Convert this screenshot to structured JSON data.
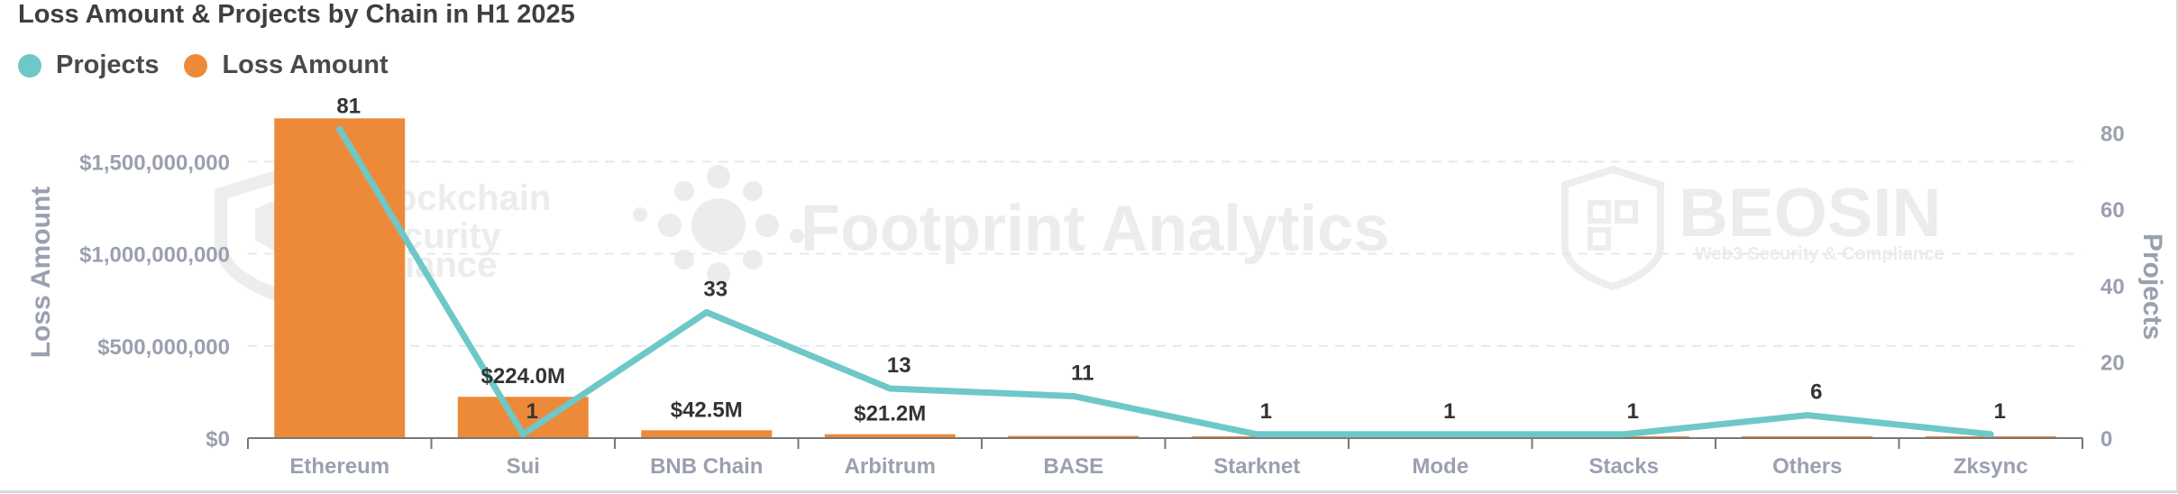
{
  "chart_data": {
    "type": "bar",
    "title": "Loss Amount & Projects by Chain in H1 2025",
    "categories": [
      "Ethereum",
      "Sui",
      "BNB Chain",
      "Arbitrum",
      "BASE",
      "Starknet",
      "Mode",
      "Stacks",
      "Others",
      "Zksync"
    ],
    "series": [
      {
        "name": "Loss Amount",
        "kind": "bar",
        "axis": "left",
        "values": [
          1735000000,
          224000000,
          42500000,
          21200000,
          12000000,
          300000,
          200000,
          150000,
          300000,
          100000
        ],
        "labels": [
          "",
          "$224.0M",
          "$42.5M",
          "$21.2M",
          "",
          "",
          "",
          "",
          "",
          ""
        ]
      },
      {
        "name": "Projects",
        "kind": "line",
        "axis": "right",
        "values": [
          81,
          1,
          33,
          13,
          11,
          1,
          1,
          1,
          6,
          1
        ]
      }
    ],
    "ylabel": "Loss Amount",
    "y2label": "Projects",
    "ylim": [
      0,
      1800000000
    ],
    "y2lim": [
      0,
      87
    ],
    "yticks": [
      "$0",
      "$500,000,000",
      "$1,000,000,000",
      "$1,500,000,000"
    ],
    "ytick_values": [
      0,
      500000000,
      1000000000,
      1500000000
    ],
    "y2ticks": [
      "0",
      "20",
      "40",
      "60",
      "80"
    ],
    "y2tick_values": [
      0,
      20,
      40,
      60,
      80
    ],
    "grid": true,
    "legend": "top-left",
    "colors": {
      "Loss Amount": "#ed8a39",
      "Projects": "#6ec8c8"
    }
  },
  "legend": [
    {
      "label": "Projects",
      "color": "#6ec8c8"
    },
    {
      "label": "Loss Amount",
      "color": "#ed8a39"
    }
  ],
  "watermarks": {
    "bsa": [
      "Blockchain",
      "Security",
      "Alliance"
    ],
    "footprint": "Footprint Analytics",
    "beosin": "BEOSIN",
    "beosin_sub": "Web3 Security & Compliance"
  }
}
